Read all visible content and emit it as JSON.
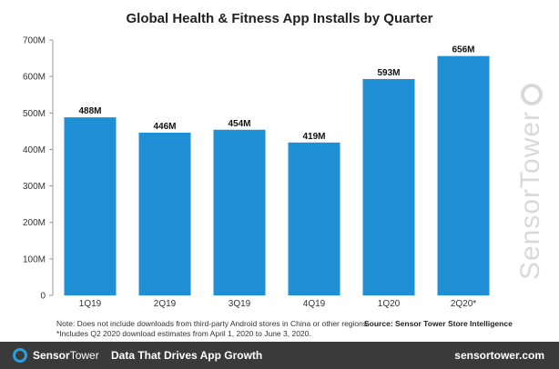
{
  "colors": {
    "bar": "#1f8fd6",
    "axis": "#999999",
    "footer_bg": "#3a3a3a",
    "accent": "#2a9fe0"
  },
  "chart_data": {
    "type": "bar",
    "title": "Global Health & Fitness App Installs by Quarter",
    "categories": [
      "1Q19",
      "2Q19",
      "3Q19",
      "4Q19",
      "1Q20",
      "2Q20*"
    ],
    "values": [
      488,
      446,
      454,
      419,
      593,
      656
    ],
    "data_labels": [
      "488M",
      "446M",
      "454M",
      "419M",
      "593M",
      "656M"
    ],
    "yticks": [
      0,
      100,
      200,
      300,
      400,
      500,
      600,
      700
    ],
    "ytick_labels": [
      "0",
      "100M",
      "200M",
      "300M",
      "400M",
      "500M",
      "600M",
      "700M"
    ],
    "ylim": [
      0,
      700
    ],
    "grid": false,
    "xlabel": "",
    "ylabel": ""
  },
  "notes": {
    "line1": "Note: Does not include downloads from third-party Android stores in China or other regions.",
    "line2": "*Includes Q2 2020 download estimates from April 1, 2020 to June 3, 2020."
  },
  "source": "Source: Sensor Tower Store Intelligence",
  "watermark": "SensorTower",
  "footer": {
    "brand_part1": "Sensor",
    "brand_part2": "Tower",
    "tagline": "Data That Drives App Growth",
    "site": "sensortower.com"
  }
}
